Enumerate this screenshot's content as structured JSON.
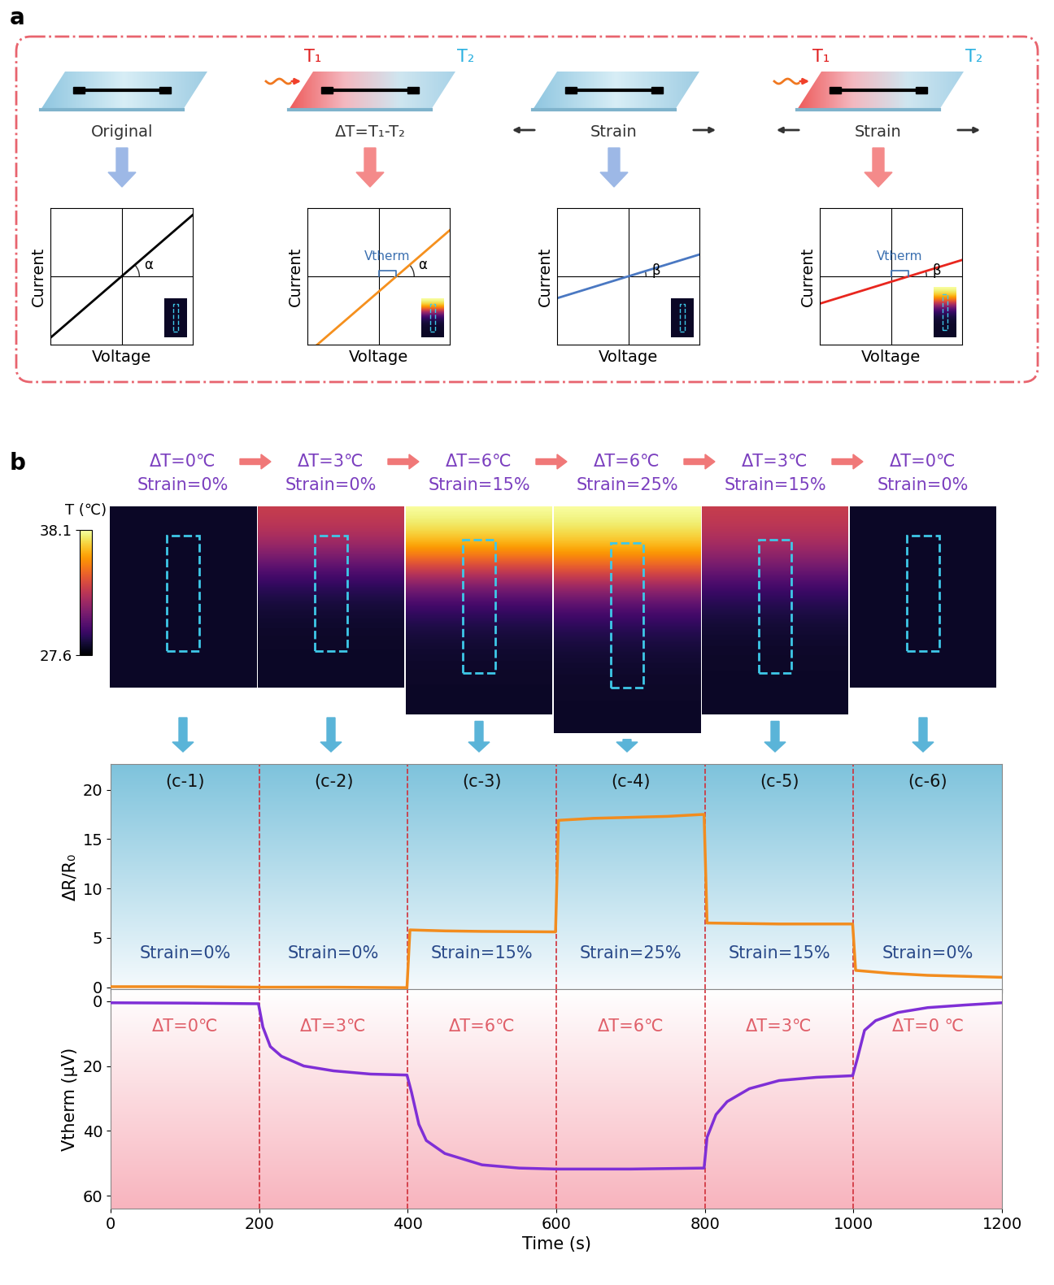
{
  "panel_a": {
    "label": "a",
    "hot_label": "T₁",
    "cold_label": "T₂",
    "x_label": "Voltage",
    "y_label": "Current",
    "vtherm_label": "Vtherm",
    "columns": [
      {
        "caption": "Original",
        "heated": false,
        "strained": false,
        "angle_label": "α",
        "color": "#000000"
      },
      {
        "caption": "ΔT=T₁-T₂",
        "heated": true,
        "strained": false,
        "angle_label": "α",
        "color": "#f5901e"
      },
      {
        "caption": "Strain",
        "heated": false,
        "strained": true,
        "angle_label": "β",
        "color": "#4a78c2"
      },
      {
        "caption": "Strain",
        "heated": true,
        "strained": true,
        "angle_label": "β",
        "color": "#e8261e"
      }
    ]
  },
  "panel_b": {
    "label": "b",
    "colorbar": {
      "label": "T (℃)",
      "range": [
        27.6,
        38.1
      ],
      "ticks": [
        27.6,
        38.1
      ]
    },
    "boundaries": [
      200,
      400,
      600,
      800,
      1000
    ],
    "segments": [
      {
        "panel": "(c-1)",
        "image_title": [
          "ΔT=0℃",
          "Strain=0%"
        ],
        "strain_label": "Strain=0%",
        "delta_t_label": "ΔT=0℃",
        "delta_t": 0,
        "strain": 0
      },
      {
        "panel": "(c-2)",
        "image_title": [
          "ΔT=3℃",
          "Strain=0%"
        ],
        "strain_label": "Strain=0%",
        "delta_t_label": "ΔT=3℃",
        "delta_t": 3,
        "strain": 0
      },
      {
        "panel": "(c-3)",
        "image_title": [
          "ΔT=6℃",
          "Strain=15%"
        ],
        "strain_label": "Strain=15%",
        "delta_t_label": "ΔT=6℃",
        "delta_t": 6,
        "strain": 15
      },
      {
        "panel": "(c-4)",
        "image_title": [
          "ΔT=6℃",
          "Strain=25%"
        ],
        "strain_label": "Strain=25%",
        "delta_t_label": "ΔT=6℃",
        "delta_t": 6,
        "strain": 25
      },
      {
        "panel": "(c-5)",
        "image_title": [
          "ΔT=3℃",
          "Strain=15%"
        ],
        "strain_label": "Strain=15%",
        "delta_t_label": "ΔT=3℃",
        "delta_t": 3,
        "strain": 15
      },
      {
        "panel": "(c-6)",
        "image_title": [
          "ΔT=0℃",
          "Strain=0%"
        ],
        "strain_label": "Strain=0%",
        "delta_t_label": "ΔT=0 ℃",
        "delta_t": 0,
        "strain": 0
      }
    ]
  },
  "chart_data": [
    {
      "type": "line",
      "y_label": "ΔR/R₀",
      "color": "#f28c1e",
      "x": [
        0,
        100,
        200,
        300,
        399,
        403,
        450,
        500,
        599,
        603,
        650,
        700,
        750,
        799,
        803,
        850,
        900,
        999,
        1003,
        1050,
        1100,
        1150,
        1200
      ],
      "values": [
        0.05,
        0.05,
        0.0,
        0.0,
        -0.05,
        5.8,
        5.7,
        5.65,
        5.6,
        16.9,
        17.1,
        17.2,
        17.3,
        17.5,
        6.5,
        6.45,
        6.4,
        6.4,
        1.7,
        1.4,
        1.2,
        1.1,
        1.0
      ],
      "xlim": [
        0,
        1200
      ],
      "xticks": [
        0,
        200,
        400,
        600,
        800,
        1000,
        1200
      ],
      "ylim": [
        -0.2,
        22.6
      ],
      "yticks": [
        0,
        5,
        10,
        15,
        20
      ],
      "grid": false,
      "tick_labels": "y"
    },
    {
      "type": "line",
      "x_label": "Time (s)",
      "y_label": "Vtherm (μV)",
      "color": "#7f2fd6",
      "x": [
        0,
        100,
        199,
        205,
        215,
        230,
        260,
        300,
        350,
        399,
        405,
        415,
        425,
        450,
        500,
        550,
        600,
        700,
        799,
        803,
        815,
        830,
        860,
        900,
        950,
        999,
        1005,
        1015,
        1030,
        1060,
        1100,
        1150,
        1200
      ],
      "values": [
        0.5,
        0.6,
        0.8,
        8,
        14,
        17,
        20,
        21.5,
        22.5,
        22.8,
        28,
        38,
        43,
        47,
        50.5,
        51.5,
        51.8,
        51.8,
        51.5,
        42,
        35,
        31,
        27,
        24.5,
        23.5,
        23,
        18,
        9,
        6,
        3.5,
        2,
        1.2,
        0.5
      ],
      "xlim": [
        0,
        1200
      ],
      "xticks": [
        0,
        200,
        400,
        600,
        800,
        1000,
        1200
      ],
      "ylim": [
        64,
        -3.7
      ],
      "yticks": [
        0,
        20,
        40,
        60
      ],
      "grid": false
    }
  ]
}
